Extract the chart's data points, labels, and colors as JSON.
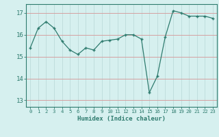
{
  "x": [
    0,
    1,
    2,
    3,
    4,
    5,
    6,
    7,
    8,
    9,
    10,
    11,
    12,
    13,
    14,
    15,
    16,
    17,
    18,
    19,
    20,
    21,
    22,
    23
  ],
  "y": [
    15.4,
    16.3,
    16.6,
    16.3,
    15.7,
    15.3,
    15.1,
    15.4,
    15.3,
    15.7,
    15.75,
    15.8,
    16.0,
    16.0,
    15.8,
    13.35,
    14.1,
    15.9,
    17.1,
    17.0,
    16.85,
    16.85,
    16.85,
    16.75
  ],
  "line_color": "#2e7b6e",
  "marker": "+",
  "bg_color": "#d6f0ef",
  "grid_color": "#c8e8e6",
  "xlabel": "Humidex (Indice chaleur)",
  "yticks": [
    13,
    14,
    15,
    16,
    17
  ],
  "xticks": [
    0,
    1,
    2,
    3,
    4,
    5,
    6,
    7,
    8,
    9,
    10,
    11,
    12,
    13,
    14,
    15,
    16,
    17,
    18,
    19,
    20,
    21,
    22,
    23
  ],
  "xlim": [
    -0.5,
    23.5
  ],
  "ylim": [
    12.7,
    17.4
  ],
  "xlabel_color": "#2e7b6e",
  "tick_color": "#2e7b6e",
  "spine_color": "#2e7b6e",
  "grid_line_color_h": "#d4a0a0",
  "grid_line_color_v": "#c0dedd"
}
